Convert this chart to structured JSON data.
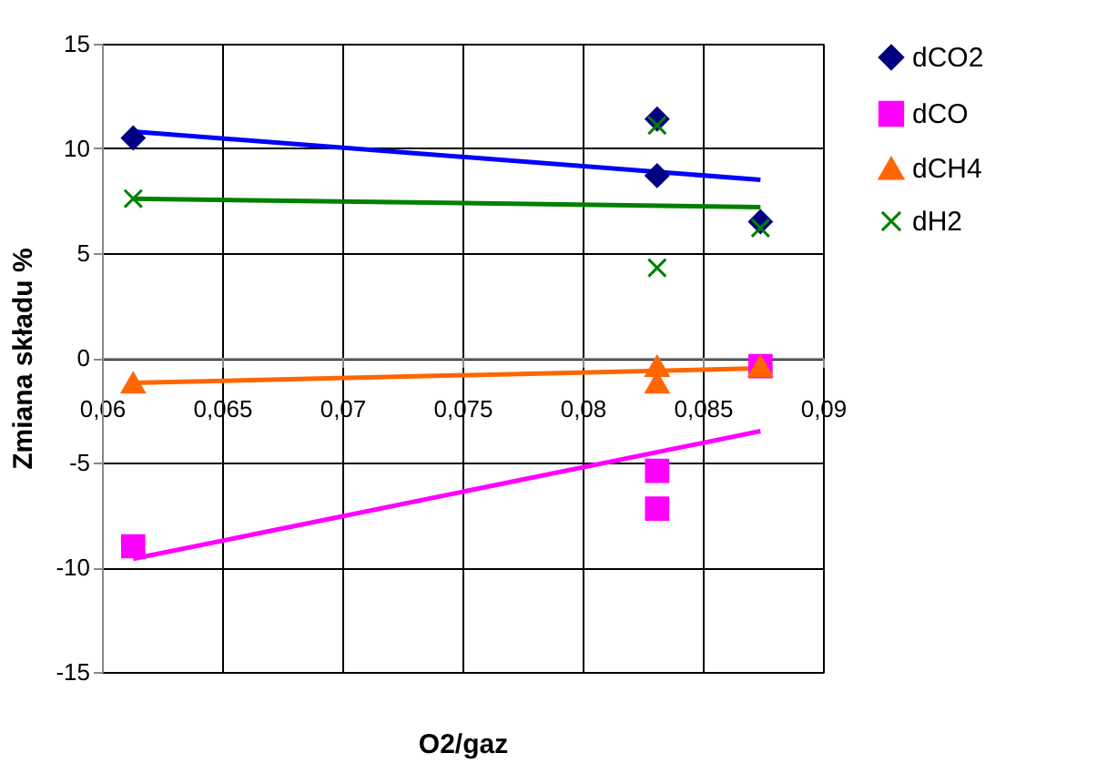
{
  "chart_data": {
    "type": "scatter",
    "xlabel": "O2/gaz",
    "ylabel": "Zmiana składu %",
    "xlim": [
      0.06,
      0.09
    ],
    "ylim": [
      -15,
      15
    ],
    "xticks": [
      {
        "value": 0.06,
        "label": "0,06"
      },
      {
        "value": 0.065,
        "label": "0,065"
      },
      {
        "value": 0.07,
        "label": "0,07"
      },
      {
        "value": 0.075,
        "label": "0,075"
      },
      {
        "value": 0.08,
        "label": "0,08"
      },
      {
        "value": 0.085,
        "label": "0,085"
      },
      {
        "value": 0.09,
        "label": "0,09"
      }
    ],
    "yticks": [
      -15,
      -10,
      -5,
      0,
      5,
      10,
      15
    ],
    "grid": true,
    "legend": "right",
    "series": [
      {
        "name": "dCO2",
        "color": "#000080",
        "marker": "diamond",
        "x": [
          0.0613,
          0.0831,
          0.0831,
          0.0874
        ],
        "values": [
          10.5,
          11.4,
          8.7,
          6.5
        ]
      },
      {
        "name": "dCO",
        "color": "#ff00ff",
        "marker": "square",
        "x": [
          0.0613,
          0.0831,
          0.0831,
          0.0874
        ],
        "values": [
          -9.0,
          -5.4,
          -7.2,
          -0.4
        ]
      },
      {
        "name": "dCH4",
        "color": "#ff6600",
        "marker": "triangle",
        "x": [
          0.0613,
          0.0831,
          0.0831,
          0.0874
        ],
        "values": [
          -1.2,
          -0.4,
          -1.2,
          -0.4
        ]
      },
      {
        "name": "dH2",
        "color": "#008000",
        "marker": "cross",
        "x": [
          0.0613,
          0.0831,
          0.0831,
          0.0874
        ],
        "values": [
          7.6,
          11.1,
          4.3,
          6.2
        ]
      },
      {
        "type": "line",
        "color": "#0000ff",
        "marker": "none",
        "x": [
          0.0613,
          0.0874
        ],
        "values": [
          10.8,
          8.5
        ]
      },
      {
        "type": "line",
        "color": "#ff00ff",
        "marker": "none",
        "x": [
          0.0613,
          0.0874
        ],
        "values": [
          -9.6,
          -3.5
        ]
      },
      {
        "type": "line",
        "color": "#ff6600",
        "marker": "none",
        "x": [
          0.0613,
          0.0874
        ],
        "values": [
          -1.2,
          -0.5
        ]
      },
      {
        "type": "line",
        "color": "#008000",
        "marker": "none",
        "x": [
          0.0613,
          0.0874
        ],
        "values": [
          7.6,
          7.2
        ]
      }
    ]
  }
}
